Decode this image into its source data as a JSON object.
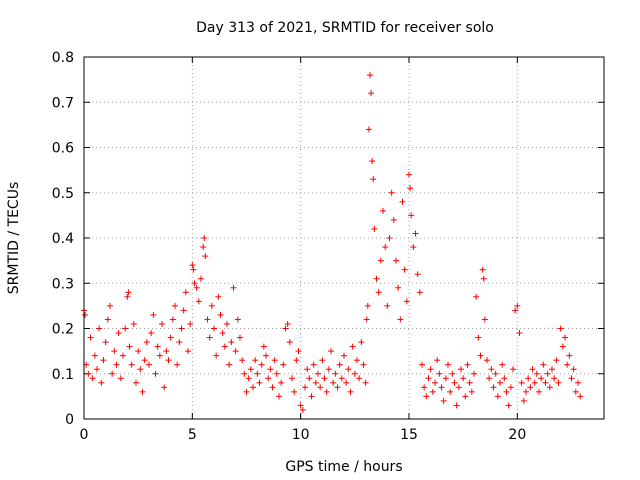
{
  "chart_data": {
    "type": "scatter",
    "title": "Day 313 of 2021, SRMTID for receiver solo",
    "xlabel": "GPS time / hours",
    "ylabel": "SRMTID / TECUs",
    "xlim": [
      0,
      24
    ],
    "ylim": [
      0,
      0.8
    ],
    "x_ticks": [
      0,
      5,
      10,
      15,
      20
    ],
    "x_tick_labels": [
      "0",
      "5",
      "10",
      "15",
      "20"
    ],
    "y_ticks": [
      0,
      0.1,
      0.2,
      0.3,
      0.4,
      0.5,
      0.6,
      0.7,
      0.8
    ],
    "y_tick_labels": [
      "0",
      "0.1",
      "0.2",
      "0.3",
      "0.4",
      "0.5",
      "0.6",
      "0.7",
      "0.8"
    ],
    "grid": true,
    "marker": "+",
    "color": "#ff0000",
    "series": [
      {
        "name": "SRMTID",
        "points": [
          [
            0.0,
            0.24
          ],
          [
            0.05,
            0.23
          ],
          [
            0.1,
            0.12
          ],
          [
            0.2,
            0.1
          ],
          [
            0.3,
            0.18
          ],
          [
            0.4,
            0.09
          ],
          [
            0.5,
            0.14
          ],
          [
            0.6,
            0.11
          ],
          [
            0.7,
            0.2
          ],
          [
            0.8,
            0.08
          ],
          [
            0.9,
            0.13
          ],
          [
            1.0,
            0.17
          ],
          [
            1.1,
            0.22
          ],
          [
            1.2,
            0.25
          ],
          [
            1.3,
            0.1
          ],
          [
            1.4,
            0.15
          ],
          [
            1.5,
            0.12
          ],
          [
            1.6,
            0.19
          ],
          [
            1.7,
            0.09
          ],
          [
            1.8,
            0.14
          ],
          [
            1.9,
            0.2
          ],
          [
            2.0,
            0.27
          ],
          [
            2.05,
            0.28
          ],
          [
            2.1,
            0.16
          ],
          [
            2.2,
            0.12
          ],
          [
            2.3,
            0.21
          ],
          [
            2.4,
            0.08
          ],
          [
            2.5,
            0.15
          ],
          [
            2.6,
            0.11
          ],
          [
            2.7,
            0.06
          ],
          [
            2.8,
            0.13
          ],
          [
            2.9,
            0.17
          ],
          [
            3.0,
            0.12
          ],
          [
            3.1,
            0.19
          ],
          [
            3.2,
            0.23
          ],
          [
            3.3,
            0.1
          ],
          [
            3.4,
            0.16
          ],
          [
            3.5,
            0.14
          ],
          [
            3.6,
            0.21
          ],
          [
            3.7,
            0.07
          ],
          [
            3.8,
            0.15
          ],
          [
            3.9,
            0.13
          ],
          [
            4.0,
            0.18
          ],
          [
            4.1,
            0.22
          ],
          [
            4.2,
            0.25
          ],
          [
            4.3,
            0.12
          ],
          [
            4.4,
            0.17
          ],
          [
            4.5,
            0.2
          ],
          [
            4.6,
            0.24
          ],
          [
            4.7,
            0.28
          ],
          [
            4.8,
            0.15
          ],
          [
            4.9,
            0.21
          ],
          [
            5.0,
            0.34
          ],
          [
            5.05,
            0.33
          ],
          [
            5.1,
            0.3
          ],
          [
            5.2,
            0.29
          ],
          [
            5.3,
            0.26
          ],
          [
            5.4,
            0.31
          ],
          [
            5.5,
            0.38
          ],
          [
            5.55,
            0.4
          ],
          [
            5.6,
            0.36
          ],
          [
            5.7,
            0.22
          ],
          [
            5.8,
            0.18
          ],
          [
            5.9,
            0.25
          ],
          [
            6.0,
            0.2
          ],
          [
            6.1,
            0.14
          ],
          [
            6.2,
            0.27
          ],
          [
            6.3,
            0.23
          ],
          [
            6.4,
            0.19
          ],
          [
            6.5,
            0.16
          ],
          [
            6.6,
            0.21
          ],
          [
            6.7,
            0.12
          ],
          [
            6.8,
            0.17
          ],
          [
            6.9,
            0.29
          ],
          [
            7.0,
            0.15
          ],
          [
            7.1,
            0.22
          ],
          [
            7.2,
            0.18
          ],
          [
            7.3,
            0.13
          ],
          [
            7.4,
            0.1
          ],
          [
            7.5,
            0.06
          ],
          [
            7.6,
            0.09
          ],
          [
            7.7,
            0.11
          ],
          [
            7.8,
            0.07
          ],
          [
            7.9,
            0.13
          ],
          [
            8.0,
            0.1
          ],
          [
            8.1,
            0.08
          ],
          [
            8.2,
            0.12
          ],
          [
            8.3,
            0.16
          ],
          [
            8.4,
            0.14
          ],
          [
            8.5,
            0.09
          ],
          [
            8.6,
            0.11
          ],
          [
            8.7,
            0.07
          ],
          [
            8.8,
            0.13
          ],
          [
            8.9,
            0.1
          ],
          [
            9.0,
            0.05
          ],
          [
            9.1,
            0.08
          ],
          [
            9.2,
            0.12
          ],
          [
            9.3,
            0.2
          ],
          [
            9.4,
            0.21
          ],
          [
            9.5,
            0.17
          ],
          [
            9.6,
            0.09
          ],
          [
            9.7,
            0.06
          ],
          [
            9.8,
            0.13
          ],
          [
            9.9,
            0.15
          ],
          [
            10.0,
            0.03
          ],
          [
            10.1,
            0.02
          ],
          [
            10.2,
            0.07
          ],
          [
            10.3,
            0.11
          ],
          [
            10.4,
            0.09
          ],
          [
            10.5,
            0.05
          ],
          [
            10.6,
            0.12
          ],
          [
            10.7,
            0.08
          ],
          [
            10.8,
            0.1
          ],
          [
            10.9,
            0.07
          ],
          [
            11.0,
            0.13
          ],
          [
            11.1,
            0.09
          ],
          [
            11.2,
            0.06
          ],
          [
            11.3,
            0.11
          ],
          [
            11.4,
            0.15
          ],
          [
            11.5,
            0.08
          ],
          [
            11.6,
            0.1
          ],
          [
            11.7,
            0.07
          ],
          [
            11.8,
            0.12
          ],
          [
            11.9,
            0.09
          ],
          [
            12.0,
            0.14
          ],
          [
            12.1,
            0.08
          ],
          [
            12.2,
            0.11
          ],
          [
            12.3,
            0.06
          ],
          [
            12.4,
            0.16
          ],
          [
            12.5,
            0.1
          ],
          [
            12.6,
            0.13
          ],
          [
            12.7,
            0.09
          ],
          [
            12.8,
            0.17
          ],
          [
            12.9,
            0.12
          ],
          [
            13.0,
            0.08
          ],
          [
            13.05,
            0.22
          ],
          [
            13.1,
            0.25
          ],
          [
            13.15,
            0.64
          ],
          [
            13.2,
            0.76
          ],
          [
            13.25,
            0.72
          ],
          [
            13.3,
            0.57
          ],
          [
            13.35,
            0.53
          ],
          [
            13.4,
            0.42
          ],
          [
            13.5,
            0.31
          ],
          [
            13.6,
            0.28
          ],
          [
            13.7,
            0.35
          ],
          [
            13.8,
            0.46
          ],
          [
            13.9,
            0.38
          ],
          [
            14.0,
            0.25
          ],
          [
            14.1,
            0.4
          ],
          [
            14.2,
            0.5
          ],
          [
            14.3,
            0.44
          ],
          [
            14.4,
            0.35
          ],
          [
            14.5,
            0.29
          ],
          [
            14.6,
            0.22
          ],
          [
            14.7,
            0.48
          ],
          [
            14.8,
            0.33
          ],
          [
            14.9,
            0.26
          ],
          [
            15.0,
            0.54
          ],
          [
            15.05,
            0.51
          ],
          [
            15.1,
            0.45
          ],
          [
            15.2,
            0.38
          ],
          [
            15.3,
            0.41
          ],
          [
            15.4,
            0.32
          ],
          [
            15.5,
            0.28
          ],
          [
            15.6,
            0.12
          ],
          [
            15.7,
            0.07
          ],
          [
            15.8,
            0.05
          ],
          [
            15.9,
            0.09
          ],
          [
            16.0,
            0.11
          ],
          [
            16.1,
            0.06
          ],
          [
            16.2,
            0.08
          ],
          [
            16.3,
            0.13
          ],
          [
            16.4,
            0.1
          ],
          [
            16.5,
            0.07
          ],
          [
            16.6,
            0.04
          ],
          [
            16.7,
            0.09
          ],
          [
            16.8,
            0.12
          ],
          [
            16.9,
            0.06
          ],
          [
            17.0,
            0.1
          ],
          [
            17.1,
            0.08
          ],
          [
            17.2,
            0.03
          ],
          [
            17.3,
            0.07
          ],
          [
            17.4,
            0.11
          ],
          [
            17.5,
            0.09
          ],
          [
            17.6,
            0.05
          ],
          [
            17.7,
            0.12
          ],
          [
            17.8,
            0.08
          ],
          [
            17.9,
            0.06
          ],
          [
            18.0,
            0.1
          ],
          [
            18.1,
            0.27
          ],
          [
            18.2,
            0.18
          ],
          [
            18.3,
            0.14
          ],
          [
            18.4,
            0.33
          ],
          [
            18.45,
            0.31
          ],
          [
            18.5,
            0.22
          ],
          [
            18.6,
            0.13
          ],
          [
            18.7,
            0.09
          ],
          [
            18.8,
            0.11
          ],
          [
            18.9,
            0.07
          ],
          [
            19.0,
            0.1
          ],
          [
            19.1,
            0.05
          ],
          [
            19.2,
            0.08
          ],
          [
            19.3,
            0.12
          ],
          [
            19.4,
            0.09
          ],
          [
            19.5,
            0.06
          ],
          [
            19.6,
            0.03
          ],
          [
            19.7,
            0.07
          ],
          [
            19.8,
            0.11
          ],
          [
            19.9,
            0.24
          ],
          [
            20.0,
            0.25
          ],
          [
            20.1,
            0.19
          ],
          [
            20.2,
            0.08
          ],
          [
            20.3,
            0.04
          ],
          [
            20.4,
            0.06
          ],
          [
            20.5,
            0.09
          ],
          [
            20.6,
            0.07
          ],
          [
            20.7,
            0.11
          ],
          [
            20.8,
            0.08
          ],
          [
            20.9,
            0.1
          ],
          [
            21.0,
            0.06
          ],
          [
            21.1,
            0.09
          ],
          [
            21.2,
            0.12
          ],
          [
            21.3,
            0.08
          ],
          [
            21.4,
            0.1
          ],
          [
            21.5,
            0.07
          ],
          [
            21.6,
            0.11
          ],
          [
            21.7,
            0.09
          ],
          [
            21.8,
            0.13
          ],
          [
            21.9,
            0.08
          ],
          [
            22.0,
            0.2
          ],
          [
            22.1,
            0.16
          ],
          [
            22.2,
            0.18
          ],
          [
            22.3,
            0.12
          ],
          [
            22.4,
            0.14
          ],
          [
            22.5,
            0.09
          ],
          [
            22.6,
            0.11
          ],
          [
            22.7,
            0.06
          ],
          [
            22.8,
            0.08
          ],
          [
            22.9,
            0.05
          ]
        ]
      }
    ]
  }
}
